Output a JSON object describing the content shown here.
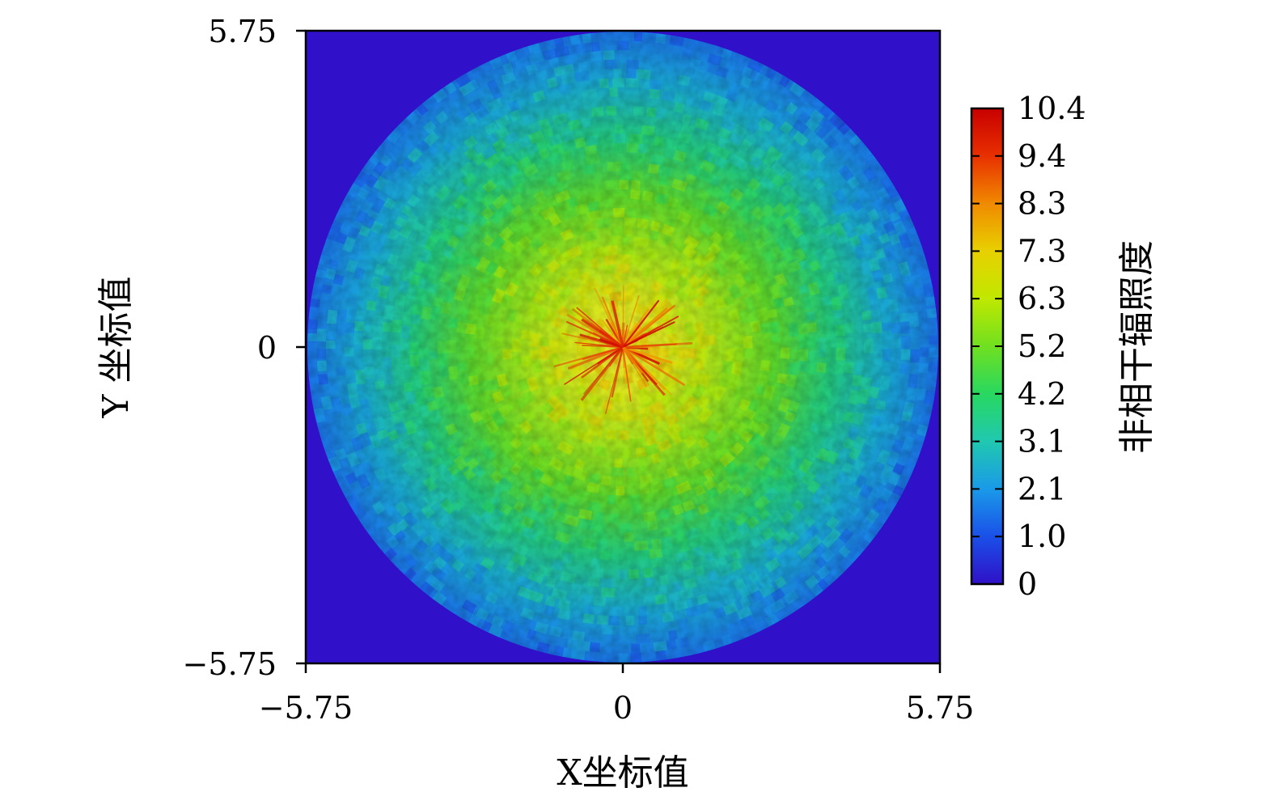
{
  "chart_data": {
    "type": "heatmap",
    "title": "",
    "xlabel": "X坐标值",
    "ylabel": "Y 坐标值",
    "xlim": [
      -5.75,
      5.75
    ],
    "ylim": [
      -5.75,
      5.75
    ],
    "x_ticks": [
      "−5.75",
      "0",
      "5.75"
    ],
    "y_ticks": [
      "5.75",
      "0",
      "−5.75"
    ],
    "grid": false,
    "colorbar": {
      "label": "非相干辐照度",
      "min": 0,
      "max": 10.4,
      "ticks": [
        "10.4",
        "9.4",
        "8.3",
        "7.3",
        "6.3",
        "5.2",
        "4.2",
        "3.1",
        "2.1",
        "1.0",
        "0"
      ],
      "colormap": [
        "#3010c8",
        "#1a50e8",
        "#1a9ae8",
        "#20c8b0",
        "#28d860",
        "#70e020",
        "#c0e800",
        "#e8d000",
        "#f08a00",
        "#e83000",
        "#c80000"
      ]
    },
    "field": {
      "shape": "disk",
      "radius": 5.75,
      "center_value": 7.5,
      "edge_value": 1.5,
      "peak_value": 10.4,
      "background_value": 0,
      "background_color": "#3010c8"
    }
  }
}
